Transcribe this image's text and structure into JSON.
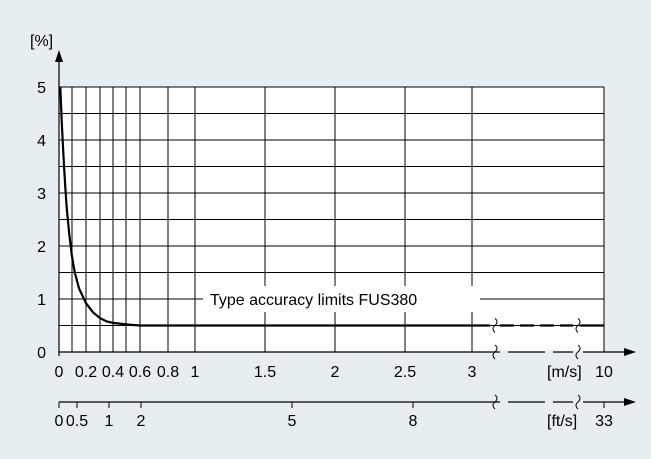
{
  "chart_data": {
    "type": "line",
    "title": "",
    "ylabel": "[%]",
    "xlabel": "[m/s]",
    "xlabel_secondary": "[ft/s]",
    "ylim": [
      0,
      5
    ],
    "xlim": [
      0,
      3
    ],
    "x_end_value": 10,
    "x_secondary_end_value": 33,
    "grid": true,
    "axis_break": true,
    "x_grid": [
      0.1,
      0.2,
      0.3,
      0.4,
      0.5,
      0.6,
      0.8,
      1,
      1.5,
      2,
      2.5,
      3
    ],
    "y_grid": [
      0.5,
      1,
      1.5,
      2,
      2.5,
      3,
      3.5,
      4,
      4.5,
      5
    ],
    "yticks": [
      {
        "value": 0,
        "label": "0"
      },
      {
        "value": 1,
        "label": "1"
      },
      {
        "value": 2,
        "label": "2"
      },
      {
        "value": 3,
        "label": "3"
      },
      {
        "value": 4,
        "label": "4"
      },
      {
        "value": 5,
        "label": "5"
      }
    ],
    "xticks": [
      {
        "value": 0,
        "label": "0"
      },
      {
        "value": 0.2,
        "label": "0.2"
      },
      {
        "value": 0.4,
        "label": "0.4"
      },
      {
        "value": 0.6,
        "label": "0.6"
      },
      {
        "value": 0.8,
        "label": "0.8"
      },
      {
        "value": 1,
        "label": "1"
      },
      {
        "value": 1.5,
        "label": "1.5"
      },
      {
        "value": 2,
        "label": "2"
      },
      {
        "value": 2.5,
        "label": "2.5"
      },
      {
        "value": 3,
        "label": "3"
      }
    ],
    "xticks_secondary": [
      {
        "value": 0,
        "label": "0"
      },
      {
        "value": 0.5,
        "label": "0.5"
      },
      {
        "value": 1,
        "label": "1"
      },
      {
        "value": 2,
        "label": "2"
      },
      {
        "value": 5,
        "label": "5"
      },
      {
        "value": 8,
        "label": "8"
      }
    ],
    "series": [
      {
        "x": [
          0.01,
          0.02,
          0.03,
          0.04,
          0.05,
          0.06,
          0.08,
          0.1,
          0.12,
          0.15,
          0.2,
          0.25,
          0.3,
          0.35,
          0.4,
          0.5,
          0.6,
          1,
          1.5,
          2,
          2.5,
          3,
          3.2
        ],
        "y": [
          5.0,
          4.4,
          3.9,
          3.45,
          3.05,
          2.7,
          2.2,
          1.8,
          1.5,
          1.2,
          0.92,
          0.75,
          0.64,
          0.58,
          0.55,
          0.52,
          0.5,
          0.5,
          0.5,
          0.5,
          0.5,
          0.5,
          0.5
        ],
        "y_at_x_end": 0.5
      }
    ],
    "annotations": [
      {
        "text": "Type accuracy limits FUS380"
      }
    ]
  }
}
